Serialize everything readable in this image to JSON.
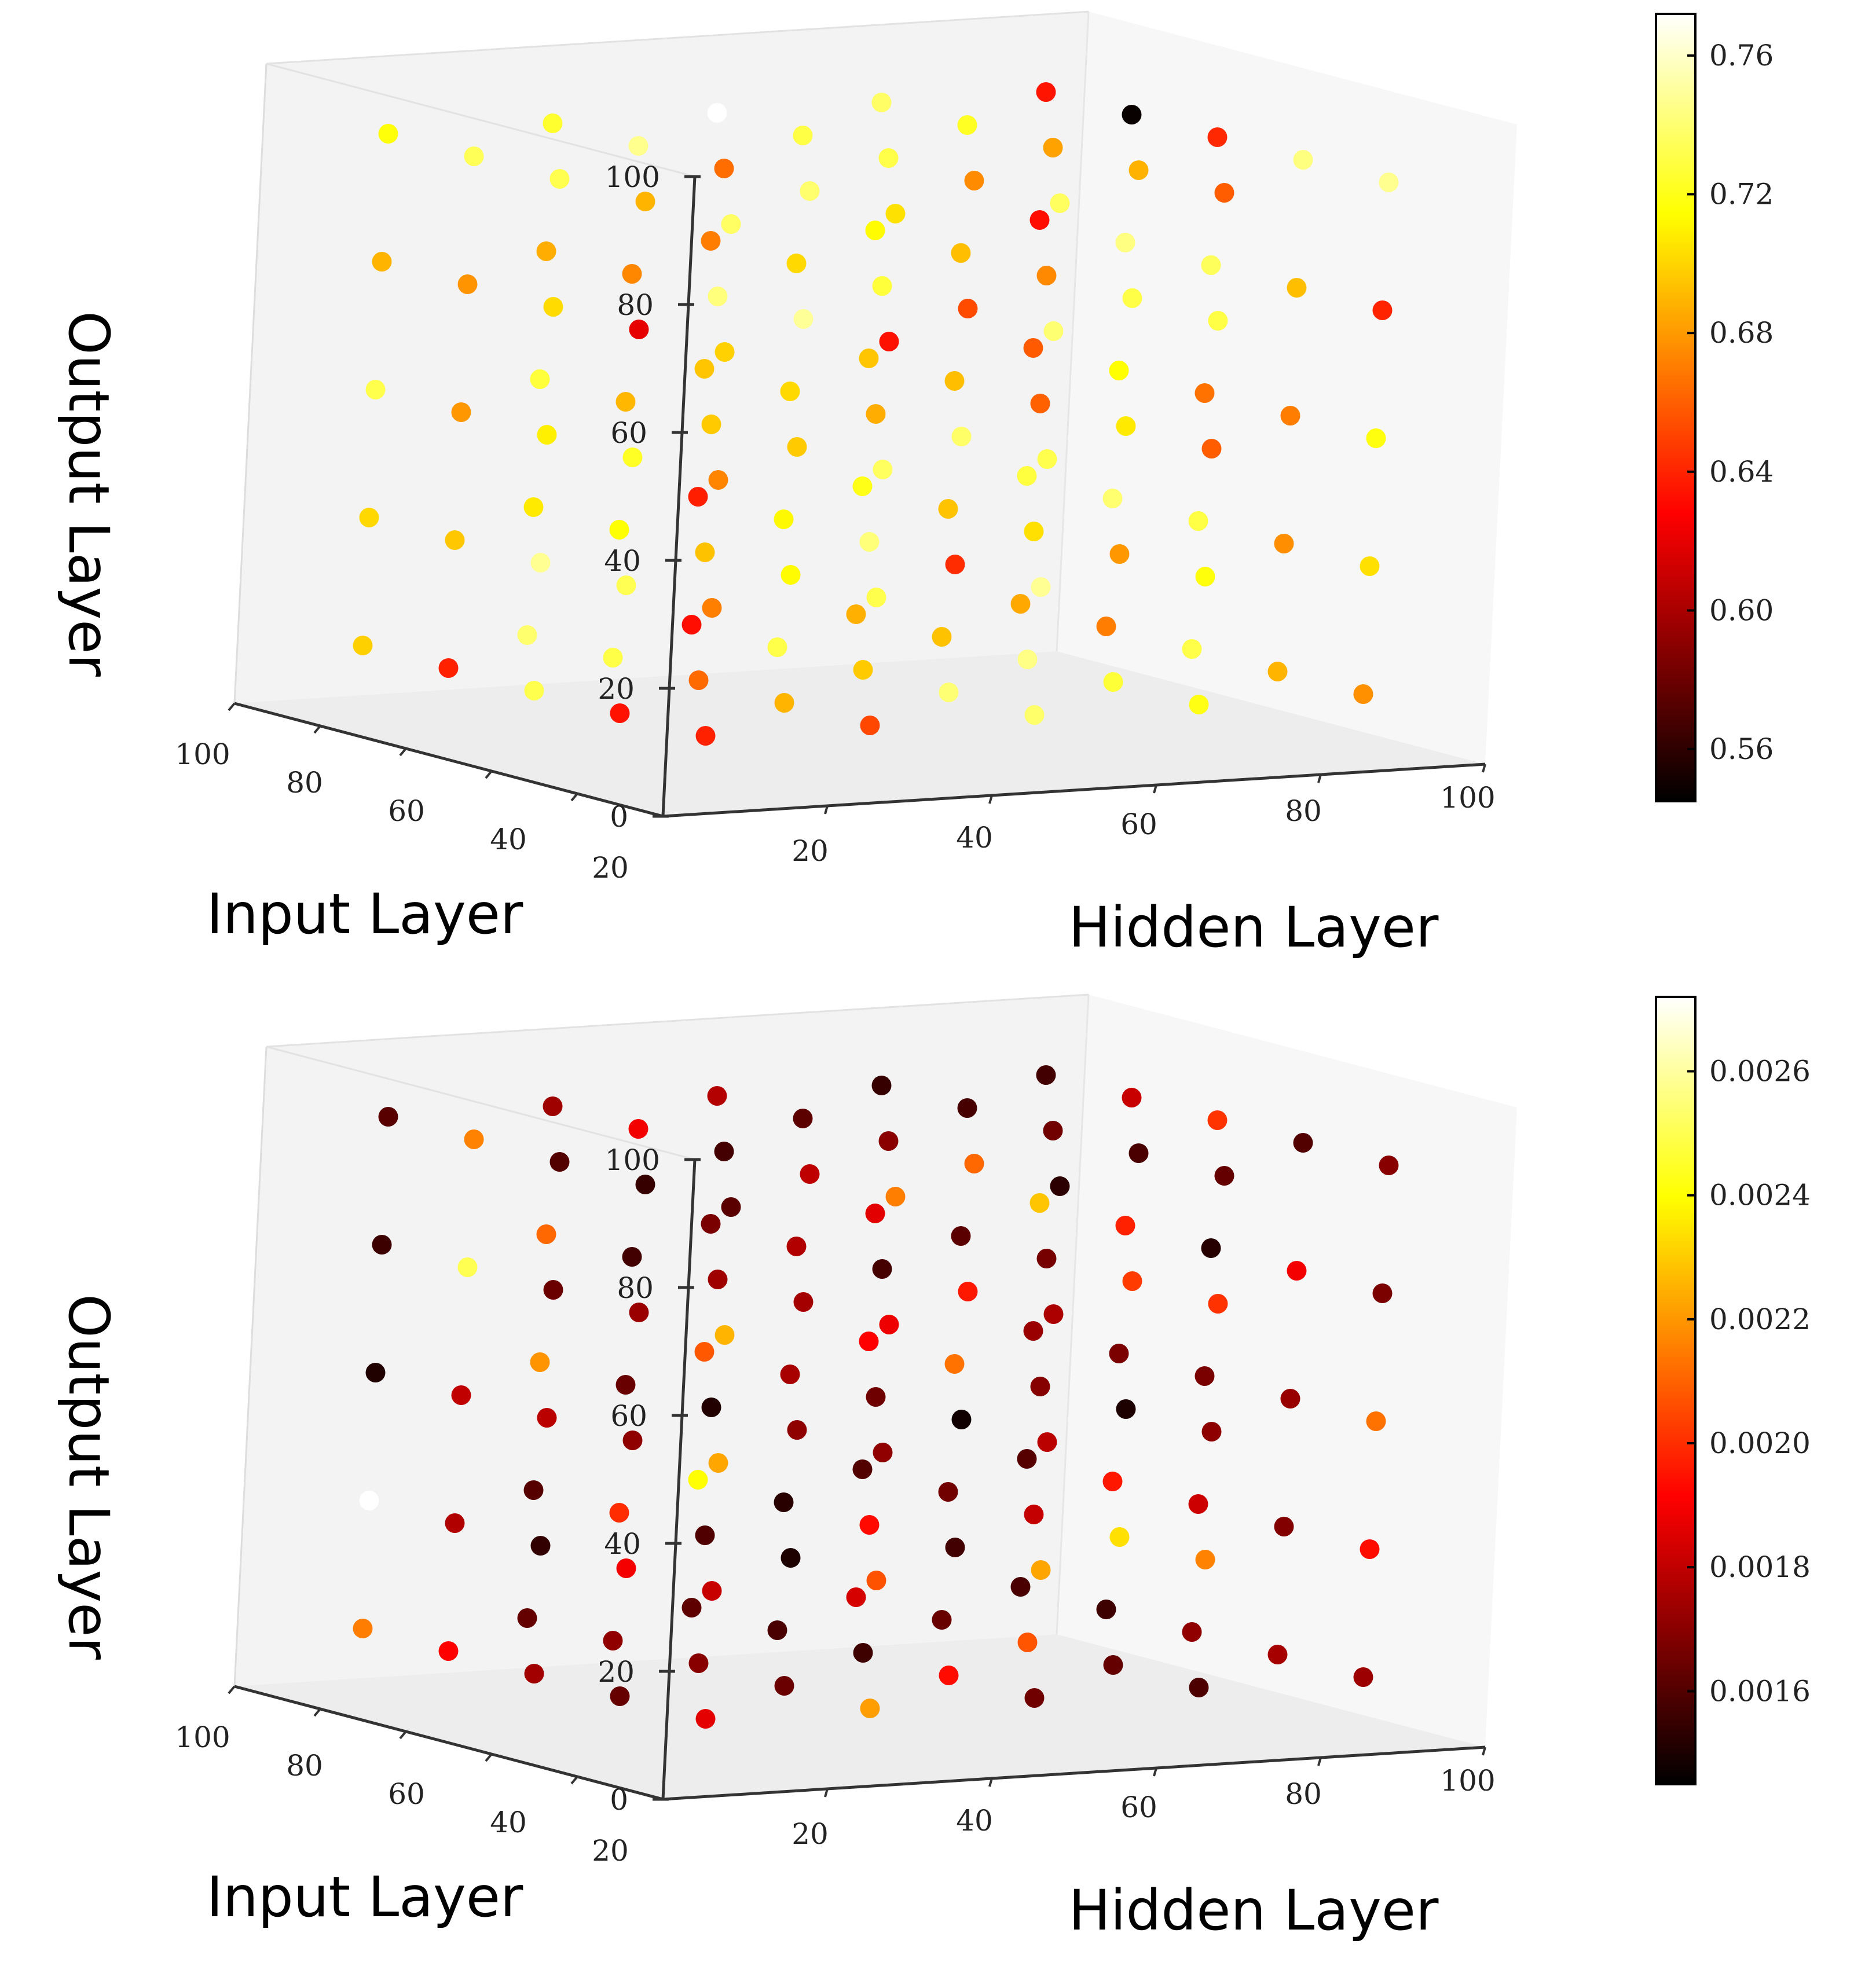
{
  "chart_data": [
    {
      "type": "scatter",
      "projection": "3d",
      "metric": "top",
      "xlabel": "Hidden Layer",
      "ylabel": "Input Layer",
      "zlabel": "Output Layer",
      "x_ticks": [
        "20",
        "40",
        "60",
        "80",
        "100"
      ],
      "y_ticks": [
        "100",
        "80",
        "60",
        "40",
        "20"
      ],
      "z_ticks": [
        "0",
        "20",
        "40",
        "60",
        "80",
        "100"
      ],
      "xlim": [
        0,
        100
      ],
      "ylim": [
        0,
        100
      ],
      "zlim": [
        0,
        100
      ],
      "grid_values": [
        10,
        30,
        50,
        70,
        90
      ],
      "colormap": "hot",
      "color_range": [
        0.545,
        0.772
      ],
      "colorbar_ticks": [
        "0.76",
        "0.72",
        "0.68",
        "0.64",
        "0.60",
        "0.56"
      ],
      "colorbar_tick_values": [
        0.76,
        0.72,
        0.68,
        0.64,
        0.6,
        0.56
      ],
      "point_count": 125,
      "highlights": [
        {
          "hidden": 90,
          "input": 70,
          "output": 90,
          "value": 0.548
        },
        {
          "hidden": 50,
          "input": 90,
          "output": 90,
          "value": 0.772
        },
        {
          "hidden": 10,
          "input": 30,
          "output": 70,
          "value": 0.62
        }
      ]
    },
    {
      "type": "scatter",
      "projection": "3d",
      "metric": "bottom",
      "xlabel": "Hidden Layer",
      "ylabel": "Input Layer",
      "zlabel": "Output Layer",
      "x_ticks": [
        "20",
        "40",
        "60",
        "80",
        "100"
      ],
      "y_ticks": [
        "100",
        "80",
        "60",
        "40",
        "20"
      ],
      "z_ticks": [
        "0",
        "20",
        "40",
        "60",
        "80",
        "100"
      ],
      "xlim": [
        0,
        100
      ],
      "ylim": [
        0,
        100
      ],
      "zlim": [
        0,
        100
      ],
      "grid_values": [
        10,
        30,
        50,
        70,
        90
      ],
      "colormap": "hot",
      "color_range": [
        0.00145,
        0.00272
      ],
      "colorbar_ticks": [
        "0.0026",
        "0.0024",
        "0.0022",
        "0.0020",
        "0.0018",
        "0.0016"
      ],
      "colorbar_tick_values": [
        0.0026,
        0.0024,
        0.0022,
        0.002,
        0.0018,
        0.0016
      ],
      "point_count": 125,
      "highlights": [
        {
          "hidden": 10,
          "input": 90,
          "output": 30,
          "value": 0.00272
        },
        {
          "hidden": 10,
          "input": 70,
          "output": 70,
          "value": 0.0025
        },
        {
          "hidden": 50,
          "input": 30,
          "output": 50,
          "value": 0.00148
        }
      ]
    }
  ]
}
